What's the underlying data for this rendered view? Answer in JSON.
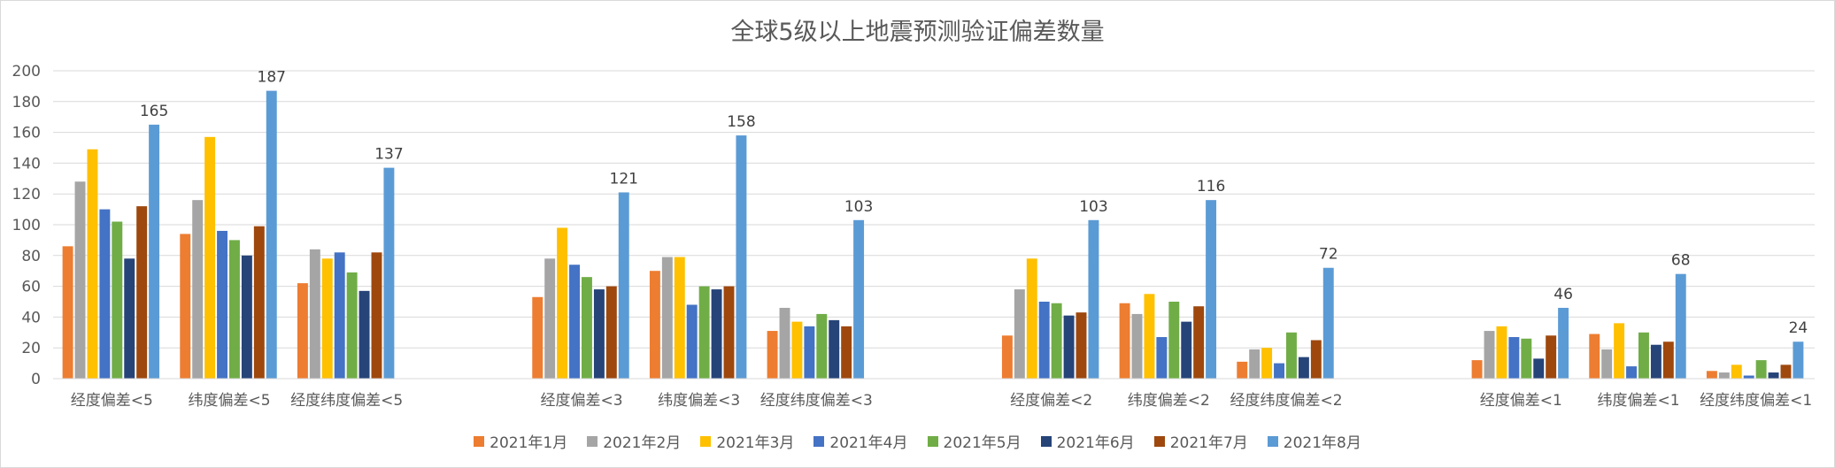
{
  "chart_data": {
    "type": "bar",
    "title": "全球5级以上地震预测验证偏差数量",
    "ylim": [
      0,
      200
    ],
    "yticks": [
      "0",
      "20",
      "40",
      "60",
      "80",
      "100",
      "120",
      "140",
      "160",
      "180",
      "200"
    ],
    "grid": true,
    "legend_position": "bottom",
    "categories": [
      "经度偏差<5",
      "纬度偏差<5",
      "经度纬度偏差<5",
      "经度偏差<3",
      "纬度偏差<3",
      "经度纬度偏差<3",
      "经度偏差<2",
      "纬度偏差<2",
      "经度纬度偏差<2",
      "经度偏差<1",
      "纬度偏差<1",
      "经度纬度偏差<1"
    ],
    "series": [
      {
        "name": "2021年1月",
        "color": "#ED7D31",
        "values": [
          86,
          94,
          62,
          53,
          70,
          31,
          28,
          49,
          11,
          12,
          29,
          5
        ]
      },
      {
        "name": "2021年2月",
        "color": "#A5A5A5",
        "values": [
          128,
          116,
          84,
          78,
          79,
          46,
          58,
          42,
          19,
          31,
          19,
          4
        ]
      },
      {
        "name": "2021年3月",
        "color": "#FFC000",
        "values": [
          149,
          157,
          78,
          98,
          79,
          37,
          78,
          55,
          20,
          34,
          36,
          9
        ]
      },
      {
        "name": "2021年4月",
        "color": "#4472C4",
        "values": [
          110,
          96,
          82,
          74,
          48,
          34,
          50,
          27,
          10,
          27,
          8,
          2
        ]
      },
      {
        "name": "2021年5月",
        "color": "#70AD47",
        "values": [
          102,
          90,
          69,
          66,
          60,
          42,
          49,
          50,
          30,
          26,
          30,
          12
        ]
      },
      {
        "name": "2021年6月",
        "color": "#264478",
        "values": [
          78,
          80,
          57,
          58,
          58,
          38,
          41,
          37,
          14,
          13,
          22,
          4
        ]
      },
      {
        "name": "2021年7月",
        "color": "#9E480E",
        "values": [
          112,
          99,
          82,
          60,
          60,
          34,
          43,
          47,
          25,
          28,
          24,
          9
        ]
      },
      {
        "name": "2021年8月",
        "color": "#5B9BD5",
        "values": [
          165,
          187,
          137,
          121,
          158,
          103,
          103,
          116,
          72,
          46,
          68,
          24
        ]
      }
    ],
    "data_labels_series": "2021年8月"
  }
}
